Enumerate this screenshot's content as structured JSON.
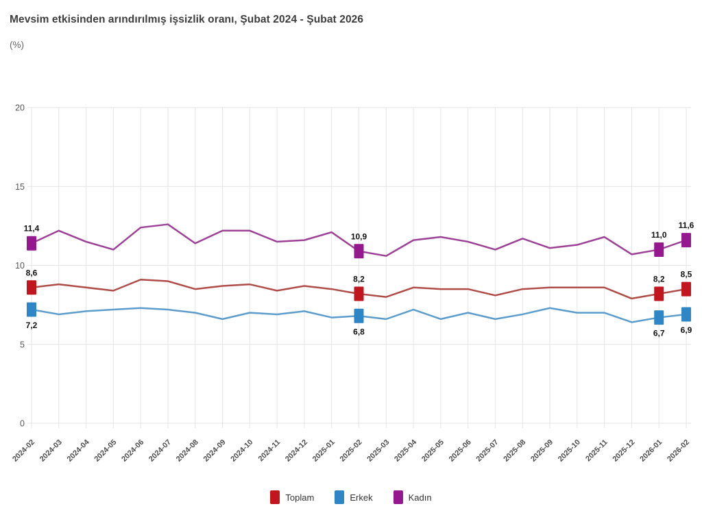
{
  "title": "Mevsim etkisinden arındırılmış işsizlik oranı, Şubat 2024 - Şubat 2026",
  "subtitle": "(%)",
  "chart_data": {
    "type": "line",
    "title": "Mevsim etkisinden arındırılmış işsizlik oranı, Şubat 2024 - Şubat 2026",
    "ylabel": "(%)",
    "ylim": [
      0,
      20
    ],
    "yticks": [
      0,
      5,
      10,
      15,
      20
    ],
    "grid": true,
    "legend_position": "bottom",
    "x": [
      "2024-02",
      "2024-03",
      "2024-04",
      "2024-05",
      "2024-06",
      "2024-07",
      "2024-08",
      "2024-09",
      "2024-10",
      "2024-11",
      "2024-12",
      "2025-01",
      "2025-02",
      "2025-03",
      "2025-04",
      "2025-05",
      "2025-06",
      "2025-07",
      "2025-08",
      "2025-09",
      "2025-10",
      "2025-11",
      "2025-12",
      "2026-01",
      "2026-02"
    ],
    "series": [
      {
        "name": "Toplam",
        "color": "#c1161d",
        "line_color": "#b04c48",
        "values": [
          8.6,
          8.8,
          8.6,
          8.4,
          9.1,
          9.0,
          8.5,
          8.7,
          8.8,
          8.4,
          8.7,
          8.5,
          8.2,
          8.0,
          8.6,
          8.5,
          8.5,
          8.1,
          8.5,
          8.6,
          8.6,
          8.6,
          7.9,
          8.2,
          8.5
        ],
        "label_side": "above",
        "labeled_points": [
          {
            "i": 0,
            "text": "8,6"
          },
          {
            "i": 12,
            "text": "8,2"
          },
          {
            "i": 23,
            "text": "8,2"
          },
          {
            "i": 24,
            "text": "8,5"
          }
        ]
      },
      {
        "name": "Erkek",
        "color": "#2e86c7",
        "line_color": "#5b9ccc",
        "values": [
          7.2,
          6.9,
          7.1,
          7.2,
          7.3,
          7.2,
          7.0,
          6.6,
          7.0,
          6.9,
          7.1,
          6.7,
          6.8,
          6.6,
          7.2,
          6.6,
          7.0,
          6.6,
          6.9,
          7.3,
          7.0,
          7.0,
          6.4,
          6.7,
          6.9
        ],
        "label_side": "below",
        "labeled_points": [
          {
            "i": 0,
            "text": "7,2"
          },
          {
            "i": 12,
            "text": "6,8"
          },
          {
            "i": 23,
            "text": "6,7"
          },
          {
            "i": 24,
            "text": "6,9"
          }
        ]
      },
      {
        "name": "Kadın",
        "color": "#96188f",
        "line_color": "#9d4196",
        "values": [
          11.4,
          12.2,
          11.5,
          11.0,
          12.4,
          12.6,
          11.4,
          12.2,
          12.2,
          11.5,
          11.6,
          12.1,
          10.9,
          10.6,
          11.6,
          11.8,
          11.5,
          11.0,
          11.7,
          11.1,
          11.3,
          11.8,
          10.7,
          11.0,
          11.6
        ],
        "label_side": "above",
        "labeled_points": [
          {
            "i": 0,
            "text": "11,4"
          },
          {
            "i": 12,
            "text": "10,9"
          },
          {
            "i": 23,
            "text": "11,0"
          },
          {
            "i": 24,
            "text": "11,6"
          }
        ]
      }
    ],
    "grid_color": "#e4e4e4",
    "axis_label_color": "#555555",
    "tick_label_color": "#4d4d4d",
    "data_label_color": "#111111"
  }
}
